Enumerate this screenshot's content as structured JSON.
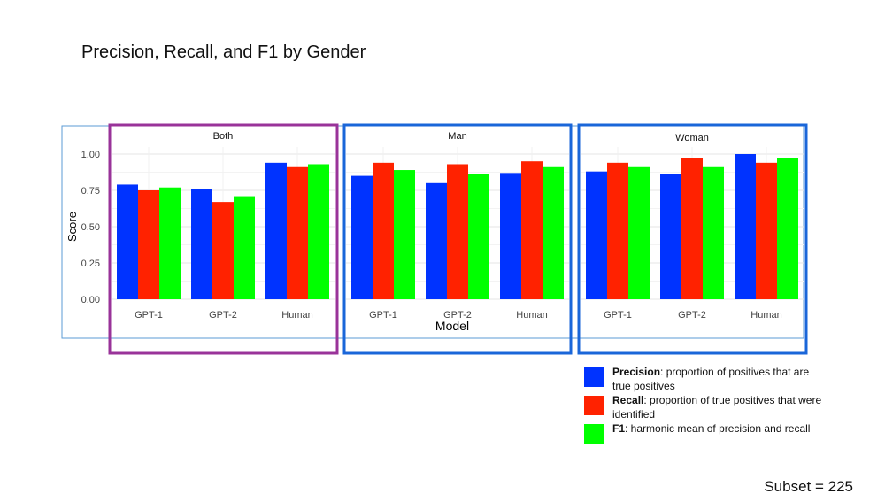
{
  "slide": {
    "title": "Precision, Recall, and F1 by Gender",
    "subset_note": "Subset = 225"
  },
  "legend": [
    {
      "term": "Precision",
      "desc": ": proportion of positives that are true positives",
      "color": "#0033ff"
    },
    {
      "term": "Recall",
      "desc": ": proportion of true positives that were identified",
      "color": "#ff2200"
    },
    {
      "term": "F1",
      "desc": ": harmonic mean of precision and recall",
      "color": "#00ff00"
    }
  ],
  "chart_data": {
    "type": "bar",
    "xlabel": "Model",
    "ylabel": "Score",
    "ylim": [
      0,
      1.0
    ],
    "yticks": [
      "0.00",
      "0.25",
      "0.50",
      "0.75",
      "1.00"
    ],
    "grid": true,
    "categories": [
      "GPT-1",
      "GPT-2",
      "Human"
    ],
    "series_colors": {
      "Precision": "#0033ff",
      "Recall": "#ff2200",
      "F1": "#00ff00"
    },
    "panels": [
      {
        "title": "Both",
        "frame_color": "#993399",
        "series": [
          {
            "name": "Precision",
            "values": [
              0.79,
              0.76,
              0.94
            ]
          },
          {
            "name": "Recall",
            "values": [
              0.75,
              0.67,
              0.91
            ]
          },
          {
            "name": "F1",
            "values": [
              0.77,
              0.71,
              0.93
            ]
          }
        ]
      },
      {
        "title": "Man",
        "frame_color": "#1a66d9",
        "series": [
          {
            "name": "Precision",
            "values": [
              0.85,
              0.8,
              0.87
            ]
          },
          {
            "name": "Recall",
            "values": [
              0.94,
              0.93,
              0.95
            ]
          },
          {
            "name": "F1",
            "values": [
              0.89,
              0.86,
              0.91
            ]
          }
        ]
      },
      {
        "title": "Woman",
        "frame_color": "#1a66d9",
        "series": [
          {
            "name": "Precision",
            "values": [
              0.88,
              0.86,
              1.0
            ]
          },
          {
            "name": "Recall",
            "values": [
              0.94,
              0.97,
              0.94
            ]
          },
          {
            "name": "F1",
            "values": [
              0.91,
              0.91,
              0.97
            ]
          }
        ]
      }
    ]
  }
}
